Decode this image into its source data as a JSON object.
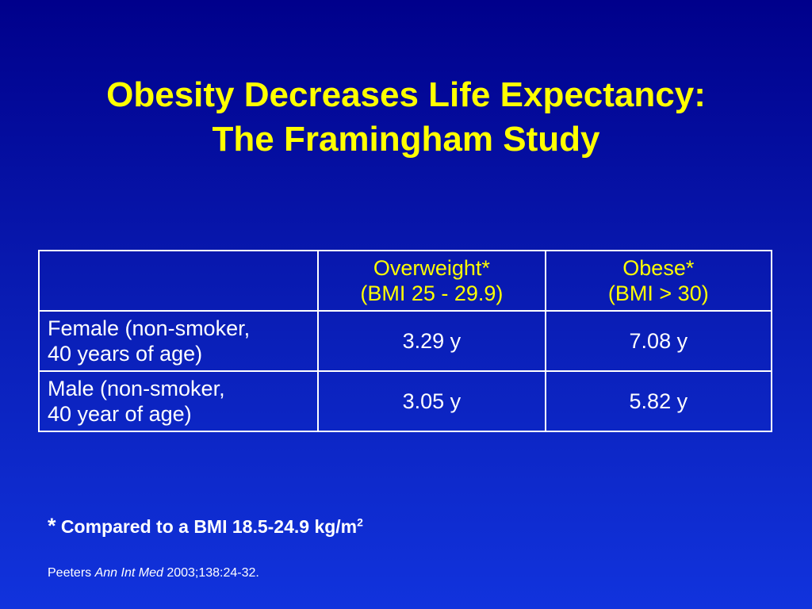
{
  "title": {
    "line1": "Obesity Decreases Life Expectancy:",
    "line2": "The Framingham Study"
  },
  "table": {
    "header": {
      "col1": "",
      "col2_line1": "Overweight*",
      "col2_line2": "(BMI 25 - 29.9)",
      "col3_line1": "Obese*",
      "col3_line2": "(BMI > 30)"
    },
    "rows": [
      {
        "label_line1": "Female (non-smoker,",
        "label_line2": "40 years of age)",
        "overweight": "3.29 y",
        "obese": "7.08 y"
      },
      {
        "label_line1": "Male (non-smoker,",
        "label_line2": "40 year of age)",
        "overweight": "3.05 y",
        "obese": "5.82 y"
      }
    ]
  },
  "footnote": {
    "marker": "*",
    "text": " Compared to a BMI 18.5-24.9 kg/m",
    "superscript": "2"
  },
  "citation": {
    "author": "Peeters ",
    "journal": "Ann Int Med",
    "details": " 2003;138:24-32."
  },
  "colors": {
    "title": "#ffff00",
    "background_top": "#00008b",
    "background_bottom": "#1133dd",
    "text": "#ffffff"
  }
}
